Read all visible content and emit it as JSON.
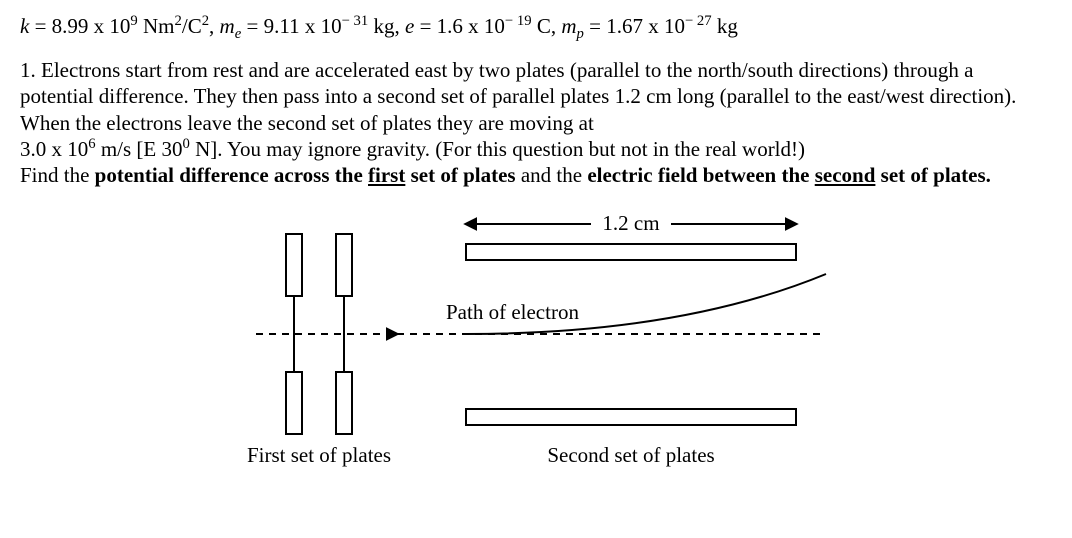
{
  "constants": {
    "k": {
      "sym": "k",
      "val": "8.99 x 10",
      "exp": "9",
      "unit_pre": " Nm",
      "unit_sup": "2",
      "unit_mid": "/C",
      "unit_sup2": "2"
    },
    "me": {
      "sym": "m",
      "sub": "e",
      "val": "9.11 x 10",
      "exp": "− 31",
      "unit": " kg"
    },
    "e": {
      "sym": "e",
      "val": "1.6 x 10",
      "exp": "− 19",
      "unit": " C"
    },
    "mp": {
      "sym": "m",
      "sub": "p",
      "val": "1.67 x 10",
      "exp": "− 27",
      "unit": " kg"
    }
  },
  "problem": {
    "num": "1. ",
    "s1": "Electrons start from rest and are accelerated east by two plates (parallel to the north/south directions) through a potential difference.  They then pass into a second set of parallel plates 1.2 cm long (parallel to the east/west direction).  When the electrons leave the second set of plates they are moving at",
    "s2a": "3.0 x 10",
    "s2exp": "6",
    "s2b": " m/s [E 30",
    "s2deg": "0",
    "s2c": " N].  You may ignore gravity. (For this question but not in the real world!)",
    "q1a": "Find the ",
    "q1b": "potential difference across the ",
    "q1c": "first",
    "q1d": " set of plates",
    "q1e": " and the ",
    "q1f": "electric field between the ",
    "q1g": "second",
    "q1h": " set of plates",
    "q1i": "."
  },
  "diagram": {
    "dim_label": "1.2 cm",
    "path_label": "Path of electron",
    "first_label": "First set of plates",
    "second_label": "Second set of plates",
    "stroke": "#000000",
    "fill": "#ffffff",
    "plate_first_w": 16,
    "plate_first_h": 62,
    "plate_first_gap": 50,
    "plate_second_w": 330,
    "plate_second_h": 16,
    "font_size": 21
  }
}
